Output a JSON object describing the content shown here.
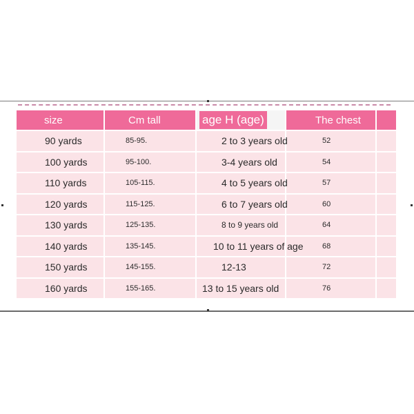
{
  "table": {
    "headers": {
      "size": "size",
      "cm_tall": "Cm tall",
      "age": "age H (age)",
      "chest": "The chest"
    },
    "rows": [
      {
        "size": "90 yards",
        "cm": "85-95.",
        "age": "2 to 3 years old",
        "chest": "52"
      },
      {
        "size": "100 yards",
        "cm": "95-100.",
        "age": "3-4 years old",
        "chest": "54"
      },
      {
        "size": "110 yards",
        "cm": "105-115.",
        "age": "4 to 5 years old",
        "chest": "57"
      },
      {
        "size": "120 yards",
        "cm": "115-125.",
        "age": "6 to 7 years old",
        "chest": "60"
      },
      {
        "size": "130 yards",
        "cm": "125-135.",
        "age": "8 to 9 years old",
        "chest": "64"
      },
      {
        "size": "140 yards",
        "cm": "135-145.",
        "age": "10 to 11 years of age",
        "chest": "68"
      },
      {
        "size": "150 yards",
        "cm": "145-155.",
        "age": "12-13",
        "chest": "72"
      },
      {
        "size": "160 yards",
        "cm": "155-165.",
        "age": "13 to 15 years old",
        "chest": "76"
      }
    ]
  },
  "colors": {
    "header_bg": "#ef6a99",
    "row_bg": "#fbe3e7",
    "dashed_rule": "#c98aa8"
  }
}
